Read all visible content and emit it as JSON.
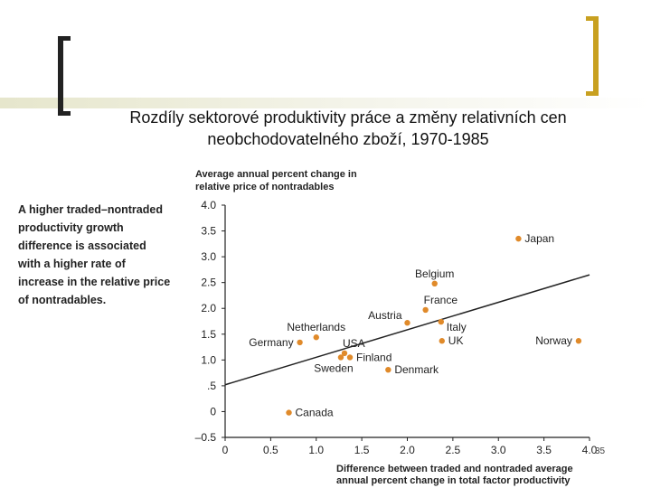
{
  "slide": {
    "title": "Rozdíly sektorové produktivity práce a změny relativních cen neobchodovatelného zboží, 1970-1985",
    "side_note": "A higher traded–nontraded productivity growth difference is associated with a higher rate of increase in the relative price of nontradables.",
    "page_number": "35"
  },
  "colors": {
    "point": "#e08a2a",
    "line": "#222222",
    "accent": "#c8a020"
  },
  "chart_data": {
    "type": "scatter",
    "title": "",
    "ylabel_lines": [
      "Average annual percent change in",
      "relative price of nontradables"
    ],
    "xlabel_lines": [
      "Difference between traded and nontraded average",
      "annual percent change in total factor productivity"
    ],
    "xlim": [
      0,
      4.0
    ],
    "ylim": [
      -0.5,
      4.0
    ],
    "x_ticks": [
      {
        "value": 0,
        "label": "0"
      },
      {
        "value": 0.5,
        "label": "0.5"
      },
      {
        "value": 1.0,
        "label": "1.0"
      },
      {
        "value": 1.5,
        "label": "1.5"
      },
      {
        "value": 2.0,
        "label": "2.0"
      },
      {
        "value": 2.5,
        "label": "2.5"
      },
      {
        "value": 3.0,
        "label": "3.0"
      },
      {
        "value": 3.5,
        "label": "3.5"
      },
      {
        "value": 4.0,
        "label": "4.0"
      }
    ],
    "y_ticks": [
      {
        "value": -0.5,
        "label": "–0.5"
      },
      {
        "value": 0,
        "label": "0"
      },
      {
        "value": 0.5,
        "label": ".5"
      },
      {
        "value": 1.0,
        "label": "1.0"
      },
      {
        "value": 1.5,
        "label": "1.5"
      },
      {
        "value": 2.0,
        "label": "2.0"
      },
      {
        "value": 2.5,
        "label": "2.5"
      },
      {
        "value": 3.0,
        "label": "3.0"
      },
      {
        "value": 3.5,
        "label": "3.5"
      },
      {
        "value": 4.0,
        "label": "4.0"
      }
    ],
    "points": [
      {
        "name": "Japan",
        "x": 3.22,
        "y": 3.35,
        "label_pos": "right"
      },
      {
        "name": "Belgium",
        "x": 2.3,
        "y": 2.48,
        "label_pos": "above"
      },
      {
        "name": "France",
        "x": 2.2,
        "y": 1.97,
        "label_pos": "above-right"
      },
      {
        "name": "Austria",
        "x": 2.0,
        "y": 1.72,
        "label_pos": "above-left"
      },
      {
        "name": "Italy",
        "x": 2.37,
        "y": 1.74,
        "label_pos": "below-right"
      },
      {
        "name": "UK",
        "x": 2.38,
        "y": 1.37,
        "label_pos": "right"
      },
      {
        "name": "Norway",
        "x": 3.88,
        "y": 1.37,
        "label_pos": "left"
      },
      {
        "name": "Netherlands",
        "x": 1.0,
        "y": 1.44,
        "label_pos": "above"
      },
      {
        "name": "Germany",
        "x": 0.82,
        "y": 1.34,
        "label_pos": "left"
      },
      {
        "name": "USA",
        "x": 1.31,
        "y": 1.13,
        "label_pos": "above-right"
      },
      {
        "name": "Finland",
        "x": 1.37,
        "y": 1.05,
        "label_pos": "right"
      },
      {
        "name": "Sweden",
        "x": 1.27,
        "y": 1.05,
        "label_pos": "below"
      },
      {
        "name": "Denmark",
        "x": 1.79,
        "y": 0.81,
        "label_pos": "right"
      },
      {
        "name": "Canada",
        "x": 0.7,
        "y": -0.02,
        "label_pos": "right"
      }
    ],
    "trend_line": {
      "x_start": 0,
      "y_start": 0.52,
      "x_end": 4.0,
      "y_end": 2.65
    }
  }
}
